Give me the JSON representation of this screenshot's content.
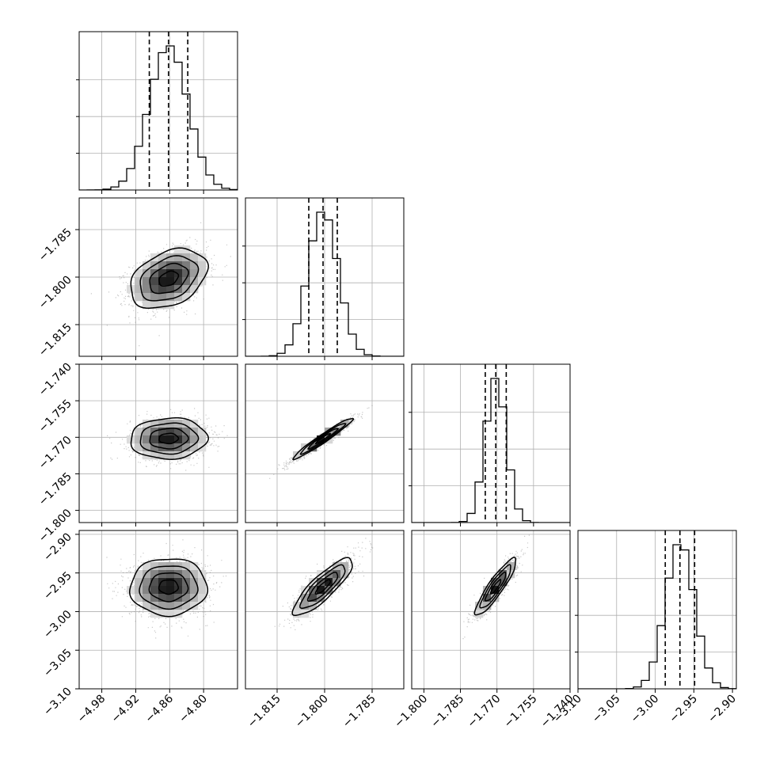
{
  "chart_data": {
    "type": "corner",
    "parameters": 4,
    "quantiles": [
      0.16,
      0.5,
      0.84
    ],
    "grid": true,
    "colors": {
      "line": "#000000",
      "points": "#888888",
      "grid": "#b0b0b0"
    },
    "axes": [
      {
        "range": [
          -5.02,
          -4.74
        ],
        "ticks": [
          -4.98,
          -4.92,
          -4.86,
          -4.8
        ],
        "tick_labels": [
          "−4.98",
          "−4.92",
          "−4.86",
          "−4.80"
        ]
      },
      {
        "range": [
          -1.825,
          -1.775
        ],
        "ticks": [
          -1.815,
          -1.8,
          -1.785
        ],
        "tick_labels": [
          "−1.815",
          "−1.800",
          "−1.785"
        ]
      },
      {
        "range": [
          -1.805,
          -1.74
        ],
        "ticks": [
          -1.8,
          -1.785,
          -1.77,
          -1.755,
          -1.74
        ],
        "tick_labels": [
          "−1.800",
          "−1.785",
          "−1.770",
          "−1.755",
          "−1.740"
        ]
      },
      {
        "range": [
          -3.1,
          -2.895
        ],
        "ticks": [
          -3.1,
          -3.05,
          -3.0,
          -2.95,
          -2.9
        ],
        "tick_labels": [
          "−3.10",
          "−3.05",
          "−3.00",
          "−2.95",
          "−2.90"
        ]
      }
    ],
    "marginals": [
      {
        "mean": -4.862,
        "sd": 0.034,
        "q": [
          -4.896,
          -4.862,
          -4.828
        ]
      },
      {
        "mean": -1.8005,
        "sd": 0.0047,
        "q": [
          -1.805,
          -1.8005,
          -1.796
        ]
      },
      {
        "mean": -1.7705,
        "sd": 0.0042,
        "q": [
          -1.7748,
          -1.7705,
          -1.7662
        ]
      },
      {
        "mean": -2.968,
        "sd": 0.0185,
        "q": [
          -2.987,
          -2.968,
          -2.949
        ]
      }
    ],
    "correlations": [
      {
        "pair": [
          0,
          1
        ],
        "rho": 0.35
      },
      {
        "pair": [
          0,
          2
        ],
        "rho": 0.05
      },
      {
        "pair": [
          0,
          3
        ],
        "rho": 0.02
      },
      {
        "pair": [
          1,
          2
        ],
        "rho": 0.97
      },
      {
        "pair": [
          1,
          3
        ],
        "rho": 0.85
      },
      {
        "pair": [
          2,
          3
        ],
        "rho": 0.9
      }
    ]
  }
}
